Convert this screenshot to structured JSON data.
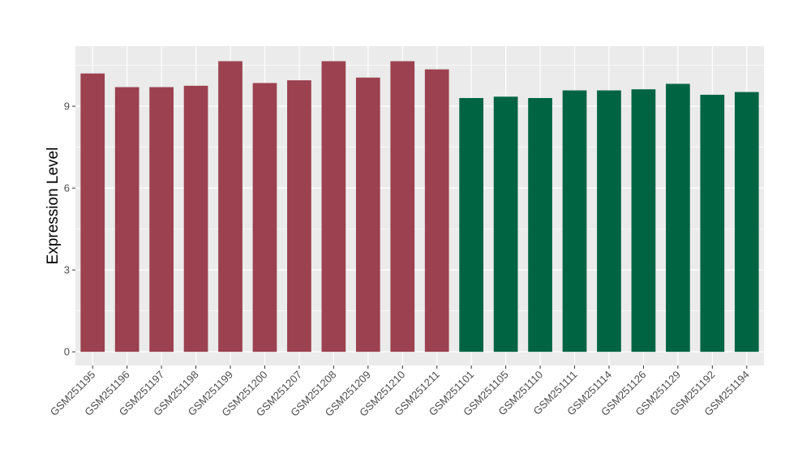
{
  "chart_data": {
    "type": "bar",
    "title": "",
    "xlabel": "",
    "ylabel": "Expression Level",
    "ylim": [
      -0.5,
      11.2
    ],
    "yticks": [
      0,
      3,
      6,
      9
    ],
    "grid": true,
    "categories": [
      "GSM251195",
      "GSM251196",
      "GSM251197",
      "GSM251198",
      "GSM251199",
      "GSM251200",
      "GSM251207",
      "GSM251208",
      "GSM251209",
      "GSM251210",
      "GSM251211",
      "GSM251101",
      "GSM251105",
      "GSM251110",
      "GSM251111",
      "GSM251114",
      "GSM251126",
      "GSM251129",
      "GSM251192",
      "GSM251194"
    ],
    "values": [
      10.2,
      9.7,
      9.7,
      9.75,
      10.65,
      9.85,
      9.95,
      10.65,
      10.05,
      10.65,
      10.35,
      9.3,
      9.35,
      9.3,
      9.58,
      9.58,
      9.62,
      9.82,
      9.42,
      9.52
    ],
    "groups": [
      0,
      0,
      0,
      0,
      0,
      0,
      0,
      0,
      0,
      0,
      0,
      1,
      1,
      1,
      1,
      1,
      1,
      1,
      1,
      1
    ],
    "group_colors": [
      "#9b4150",
      "#006443"
    ],
    "panel_background": "#ebebeb",
    "grid_color": "#ffffff"
  }
}
